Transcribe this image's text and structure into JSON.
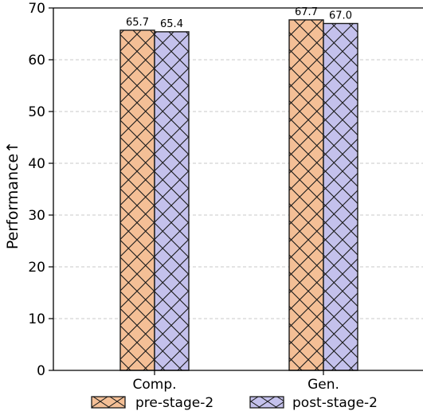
{
  "chart_data": {
    "type": "bar",
    "title": "",
    "xlabel": "",
    "ylabel": "Performance↑",
    "categories": [
      "Comp.",
      "Gen."
    ],
    "series": [
      {
        "name": "pre-stage-2",
        "values": [
          65.7,
          67.7
        ],
        "labels": [
          "65.7",
          "67.7"
        ],
        "color": "#f4bf96"
      },
      {
        "name": "post-stage-2",
        "values": [
          65.4,
          67.0
        ],
        "labels": [
          "65.4",
          "67.0"
        ],
        "color": "#c4c1ec"
      }
    ],
    "ylim": [
      0,
      70
    ],
    "yticks": [
      "0",
      "10",
      "20",
      "30",
      "40",
      "50",
      "60",
      "70"
    ],
    "grid": true,
    "legend_position": "bottom",
    "hatch": "cross"
  }
}
